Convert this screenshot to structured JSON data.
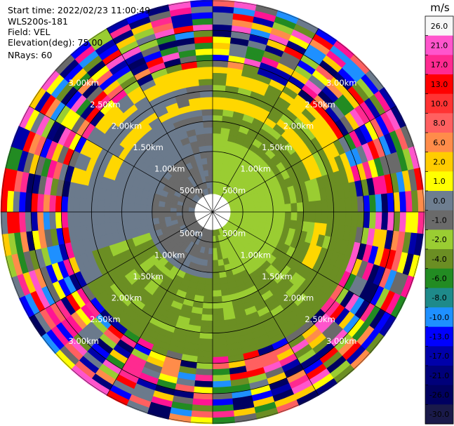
{
  "header": {
    "start_time": "Start time: 2022/02/23 11:00:49",
    "instrument": "WLS200s-181",
    "field": "Field: VEL",
    "elevation": "Elevation(deg): 75.00",
    "nrays": "NRays: 60"
  },
  "chart_data": {
    "type": "heatmap",
    "projection": "polar-ppi",
    "rays": 60,
    "range_rings": [
      "500m",
      "1.00km",
      "1.50km",
      "2.00km",
      "2.50km",
      "3.00km"
    ],
    "ring_values_km": [
      0.5,
      1.0,
      1.5,
      2.0,
      2.5,
      3.0
    ],
    "max_range_km": 3.5,
    "colorbar": {
      "unit": "m/s",
      "ticks": [
        "26.0",
        "21.0",
        "17.0",
        "13.0",
        "10.0",
        "8.0",
        "6.0",
        "2.0",
        "1.0",
        "0.0",
        "-1.0",
        "-2.0",
        "-4.0",
        "-6.0",
        "-8.0",
        "-10.0",
        "-13.0",
        "-17.0",
        "-21.0",
        "-26.0",
        "-30.0"
      ],
      "colors": [
        "#f7f7f7",
        "#ff55cc",
        "#ff2a90",
        "#ff0000",
        "#ff3333",
        "#ff6060",
        "#ff8c4a",
        "#ffcc00",
        "#ffff00",
        "#6e7e90",
        "#6a6a6a",
        "#9acd32",
        "#6b8e23",
        "#228b22",
        "#1e8a8a",
        "#1e90ff",
        "#0000ff",
        "#0000aa",
        "#00007a",
        "#000060",
        "#1a1a4a"
      ]
    }
  }
}
